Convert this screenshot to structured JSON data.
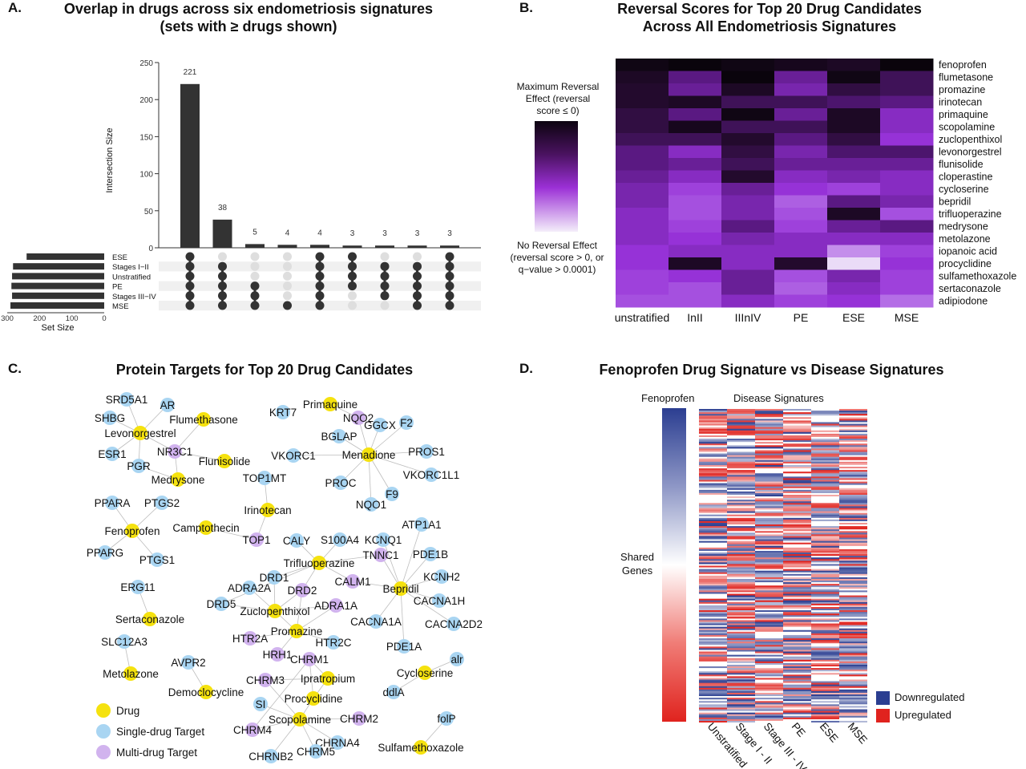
{
  "panel_a": {
    "letter": "A.",
    "title_line1": "Overlap in drugs across six endometriosis signatures",
    "title_line2": "(sets with ≥ drugs shown)",
    "y_axis_label": "Intersection Size",
    "set_size_label": "Set Size",
    "y_ticks": [
      "0",
      "50",
      "100",
      "150",
      "200",
      "250"
    ],
    "set_size_ticks": [
      "300",
      "200",
      "100",
      "0"
    ]
  },
  "panel_b": {
    "letter": "B.",
    "title_line1": "Reversal Scores for Top 20 Drug Candidates",
    "title_line2": "Across All Endometriosis Signatures",
    "legend_top": "Maximum Reversal Effect (reversal score ≤ 0)",
    "legend_bottom": "No Reversal Effect (reversal score > 0, or q−value > 0.0001)"
  },
  "panel_c": {
    "letter": "C.",
    "title": "Protein Targets for Top 20 Drug Candidates",
    "legend": [
      "Drug",
      "Single-drug Target",
      "Multi-drug Target"
    ]
  },
  "panel_d": {
    "letter": "D.",
    "title": "Fenoprofen Drug Signature vs Disease Signatures",
    "fenoprofen_label": "Fenoprofen",
    "disease_label": "Disease Signatures",
    "shared_genes_line1": "Shared",
    "shared_genes_line2": "Genes",
    "columns": [
      "Unstratified",
      "Stage I - II",
      "Stage III - IV",
      "PE",
      "ESE",
      "MSE"
    ],
    "legend": [
      "Downregulated",
      "Upregulated"
    ],
    "legend_colors": [
      "#2b3e91",
      "#e0231e"
    ]
  },
  "chart_data": [
    {
      "type": "bar",
      "chart": "upset",
      "title": "Overlap in drugs across six endometriosis signatures (sets with ≥ drugs shown)",
      "ylabel": "Intersection Size",
      "ylim": [
        0,
        250
      ],
      "sets": [
        "ESE",
        "Stages I−II",
        "Unstratified",
        "PE",
        "Stages III−IV",
        "MSE"
      ],
      "set_sizes": [
        240,
        282,
        285,
        287,
        285,
        290
      ],
      "intersections": [
        {
          "value": 221,
          "members": [
            "Stages I−II",
            "Unstratified",
            "PE",
            "Stages III−IV",
            "MSE",
            "ESE"
          ]
        },
        {
          "value": 38,
          "members": [
            "Stages I−II",
            "Unstratified",
            "PE",
            "Stages III−IV",
            "MSE"
          ]
        },
        {
          "value": 5,
          "members": [
            "PE",
            "Stages III−IV",
            "MSE"
          ]
        },
        {
          "value": 4,
          "members": [
            "MSE"
          ]
        },
        {
          "value": 4,
          "members": [
            "ESE",
            "Stages I−II",
            "Unstratified",
            "PE",
            "Stages III−IV",
            "MSE"
          ]
        },
        {
          "value": 3,
          "members": [
            "ESE",
            "Stages I−II",
            "Unstratified",
            "PE"
          ]
        },
        {
          "value": 3,
          "members": [
            "Stages I−II",
            "Unstratified",
            "PE",
            "Stages III−IV"
          ]
        },
        {
          "value": 3,
          "members": [
            "Stages I−II",
            "Unstratified",
            "PE",
            "Stages III−IV",
            "MSE"
          ]
        },
        {
          "value": 3,
          "members": [
            "ESE",
            "Stages I−II",
            "Unstratified",
            "PE",
            "Stages III−IV",
            "MSE"
          ]
        }
      ]
    },
    {
      "type": "heatmap",
      "title": "Reversal Scores for Top 20 Drug Candidates Across All Endometriosis Signatures",
      "columns": [
        "unstratified",
        "InII",
        "IIInIV",
        "PE",
        "ESE",
        "MSE"
      ],
      "rows": [
        "fenoprofen",
        "flumetasone",
        "promazine",
        "irinotecan",
        "primaquine",
        "scopolamine",
        "zuclopenthixol",
        "levonorgestrel",
        "flunisolide",
        "cloperastine",
        "cycloserine",
        "bepridil",
        "trifluoperazine",
        "medrysone",
        "metolazone",
        "iopanoic acid",
        "procyclidine",
        "sulfamethoxazole",
        "sertaconazole",
        "adipiodone"
      ],
      "values": [
        [
          0.95,
          1.0,
          0.95,
          0.9,
          0.85,
          1.0
        ],
        [
          0.85,
          0.6,
          1.0,
          0.55,
          0.95,
          0.7
        ],
        [
          0.8,
          0.55,
          0.85,
          0.5,
          0.75,
          0.7
        ],
        [
          0.8,
          0.85,
          0.7,
          0.7,
          0.65,
          0.6
        ],
        [
          0.75,
          0.6,
          0.95,
          0.55,
          0.85,
          0.45
        ],
        [
          0.75,
          0.9,
          0.7,
          0.7,
          0.85,
          0.45
        ],
        [
          0.7,
          0.7,
          0.8,
          0.6,
          0.75,
          0.4
        ],
        [
          0.6,
          0.45,
          0.75,
          0.5,
          0.65,
          0.65
        ],
        [
          0.6,
          0.55,
          0.7,
          0.55,
          0.55,
          0.55
        ],
        [
          0.55,
          0.45,
          0.8,
          0.45,
          0.5,
          0.45
        ],
        [
          0.5,
          0.35,
          0.55,
          0.4,
          0.35,
          0.45
        ],
        [
          0.5,
          0.3,
          0.5,
          0.25,
          0.6,
          0.5
        ],
        [
          0.45,
          0.3,
          0.5,
          0.3,
          0.85,
          0.3
        ],
        [
          0.45,
          0.35,
          0.6,
          0.35,
          0.55,
          0.6
        ],
        [
          0.45,
          0.4,
          0.5,
          0.45,
          0.45,
          0.45
        ],
        [
          0.4,
          0.45,
          0.45,
          0.45,
          0.15,
          0.35
        ],
        [
          0.4,
          0.85,
          0.45,
          0.8,
          0.03,
          0.4
        ],
        [
          0.35,
          0.4,
          0.55,
          0.3,
          0.5,
          0.35
        ],
        [
          0.35,
          0.3,
          0.55,
          0.25,
          0.45,
          0.35
        ],
        [
          0.3,
          0.3,
          0.45,
          0.35,
          0.4,
          0.2
        ]
      ]
    }
  ],
  "network": {
    "nodes": [
      {
        "label": "SRD5A1",
        "kind": "single"
      },
      {
        "label": "AR",
        "kind": "single"
      },
      {
        "label": "SHBG",
        "kind": "single"
      },
      {
        "label": "Flumethasone",
        "kind": "drug"
      },
      {
        "label": "Levonorgestrel",
        "kind": "drug"
      },
      {
        "label": "NR3C1",
        "kind": "multi"
      },
      {
        "label": "Flunisolide",
        "kind": "drug"
      },
      {
        "label": "ESR1",
        "kind": "single"
      },
      {
        "label": "PGR",
        "kind": "single"
      },
      {
        "label": "Medrysone",
        "kind": "drug"
      },
      {
        "label": "KRT7",
        "kind": "single"
      },
      {
        "label": "Primaquine",
        "kind": "drug"
      },
      {
        "label": "NQO2",
        "kind": "multi"
      },
      {
        "label": "BGLAP",
        "kind": "single"
      },
      {
        "label": "GGCX",
        "kind": "single"
      },
      {
        "label": "F2",
        "kind": "single"
      },
      {
        "label": "PROS1",
        "kind": "single"
      },
      {
        "label": "VKORC1",
        "kind": "single"
      },
      {
        "label": "Menadione",
        "kind": "drug"
      },
      {
        "label": "VKORC1L1",
        "kind": "single"
      },
      {
        "label": "TOP1MT",
        "kind": "single"
      },
      {
        "label": "PROC",
        "kind": "single"
      },
      {
        "label": "F9",
        "kind": "single"
      },
      {
        "label": "NQO1",
        "kind": "single"
      },
      {
        "label": "PPARA",
        "kind": "single"
      },
      {
        "label": "PTGS2",
        "kind": "single"
      },
      {
        "label": "Irinotecan",
        "kind": "drug"
      },
      {
        "label": "Fenoprofen",
        "kind": "drug"
      },
      {
        "label": "Camptothecin",
        "kind": "drug"
      },
      {
        "label": "ATP1A1",
        "kind": "single"
      },
      {
        "label": "PPARG",
        "kind": "single"
      },
      {
        "label": "TOP1",
        "kind": "multi"
      },
      {
        "label": "CALY",
        "kind": "single"
      },
      {
        "label": "S100A4",
        "kind": "single"
      },
      {
        "label": "KCNQ1",
        "kind": "single"
      },
      {
        "label": "PTGS1",
        "kind": "single"
      },
      {
        "label": "Trifluoperazine",
        "kind": "drug"
      },
      {
        "label": "TNNC1",
        "kind": "multi"
      },
      {
        "label": "PDE1B",
        "kind": "single"
      },
      {
        "label": "DRD1",
        "kind": "single"
      },
      {
        "label": "CALM1",
        "kind": "multi"
      },
      {
        "label": "KCNH2",
        "kind": "single"
      },
      {
        "label": "ERG11",
        "kind": "single"
      },
      {
        "label": "ADRA2A",
        "kind": "single"
      },
      {
        "label": "DRD2",
        "kind": "multi"
      },
      {
        "label": "Bepridil",
        "kind": "drug"
      },
      {
        "label": "CACNA1H",
        "kind": "single"
      },
      {
        "label": "DRD5",
        "kind": "single"
      },
      {
        "label": "ADRA1A",
        "kind": "multi"
      },
      {
        "label": "Zuclopenthixol",
        "kind": "drug"
      },
      {
        "label": "Sertaconazole",
        "kind": "drug"
      },
      {
        "label": "CACNA1A",
        "kind": "single"
      },
      {
        "label": "CACNA2D2",
        "kind": "single"
      },
      {
        "label": "Promazine",
        "kind": "drug"
      },
      {
        "label": "SLC12A3",
        "kind": "single"
      },
      {
        "label": "HTR2A",
        "kind": "multi"
      },
      {
        "label": "HTR2C",
        "kind": "single"
      },
      {
        "label": "PDE1A",
        "kind": "single"
      },
      {
        "label": "HRH1",
        "kind": "multi"
      },
      {
        "label": "CHRM1",
        "kind": "multi"
      },
      {
        "label": "AVPR2",
        "kind": "single"
      },
      {
        "label": "alr",
        "kind": "single"
      },
      {
        "label": "Metolazone",
        "kind": "drug"
      },
      {
        "label": "Cycloserine",
        "kind": "drug"
      },
      {
        "label": "CHRM3",
        "kind": "multi"
      },
      {
        "label": "Ipratropium",
        "kind": "drug"
      },
      {
        "label": "Democlocycline",
        "kind": "drug"
      },
      {
        "label": "ddlA",
        "kind": "single"
      },
      {
        "label": "Procyclidine",
        "kind": "drug"
      },
      {
        "label": "SI",
        "kind": "single"
      },
      {
        "label": "folP",
        "kind": "single"
      },
      {
        "label": "Scopolamine",
        "kind": "drug"
      },
      {
        "label": "CHRM2",
        "kind": "multi"
      },
      {
        "label": "CHRM4",
        "kind": "multi"
      },
      {
        "label": "CHRNA4",
        "kind": "single"
      },
      {
        "label": "Sulfamethoxazole",
        "kind": "drug"
      },
      {
        "label": "CHRNB2",
        "kind": "single"
      },
      {
        "label": "CHRM5",
        "kind": "single"
      }
    ]
  },
  "colors": {
    "drug": "#f5e20f",
    "single": "#a9d5f2",
    "multi": "#d1b3ee",
    "bar": "#333333",
    "down": "#2b3e91",
    "up": "#e0231e"
  }
}
